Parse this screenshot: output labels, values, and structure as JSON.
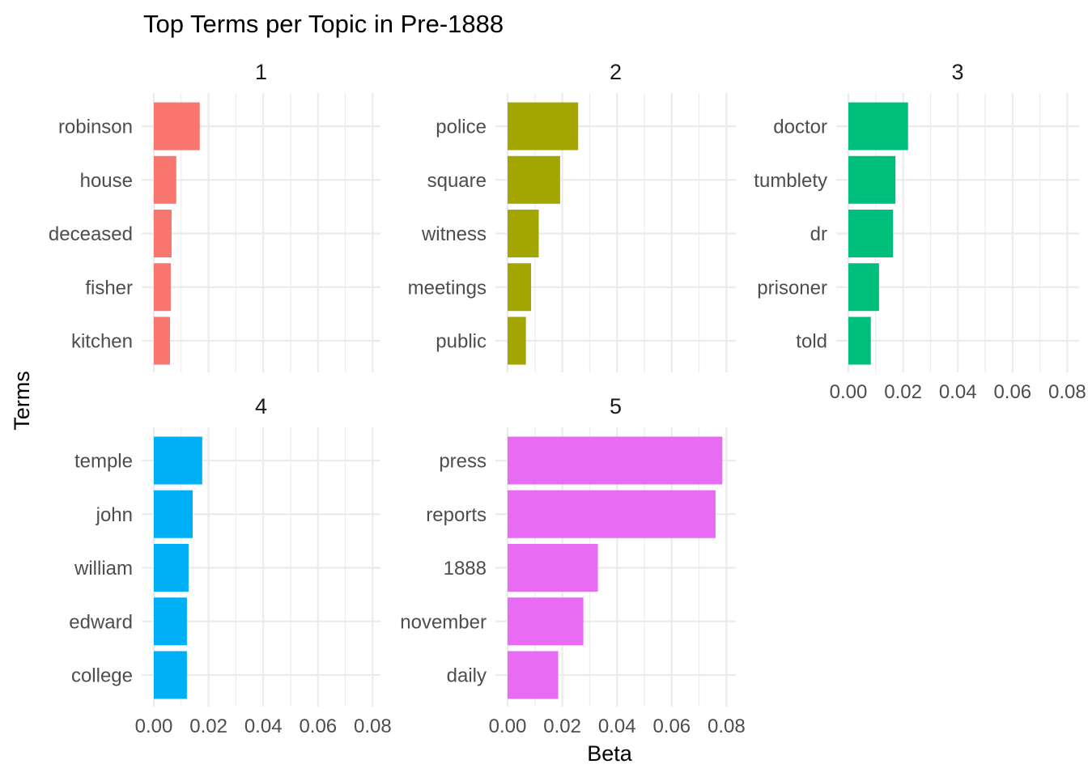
{
  "chart_data": {
    "type": "bar",
    "orientation": "horizontal",
    "title": "Top Terms per Topic in Pre-1888",
    "xlabel": "Beta",
    "ylabel": "Terms",
    "xlim": [
      0,
      0.082
    ],
    "x_ticks": [
      "0.00",
      "0.02",
      "0.04",
      "0.06",
      "0.08"
    ],
    "x_tick_values": [
      0,
      0.02,
      0.04,
      0.06,
      0.08
    ],
    "grid": true,
    "legend": "none",
    "facets": [
      {
        "label": "1",
        "color": "#F8766D",
        "terms": [
          "robinson",
          "house",
          "deceased",
          "fisher",
          "kitchen"
        ],
        "values": [
          0.0168,
          0.0082,
          0.0065,
          0.0062,
          0.0059
        ]
      },
      {
        "label": "2",
        "color": "#A3A500",
        "terms": [
          "police",
          "square",
          "witness",
          "meetings",
          "public"
        ],
        "values": [
          0.0258,
          0.0192,
          0.0114,
          0.0086,
          0.0067
        ]
      },
      {
        "label": "3",
        "color": "#00BF7D",
        "terms": [
          "doctor",
          "tumblety",
          "dr",
          "prisoner",
          "told"
        ],
        "values": [
          0.0218,
          0.0172,
          0.0163,
          0.0112,
          0.0082
        ]
      },
      {
        "label": "4",
        "color": "#00B0F6",
        "terms": [
          "temple",
          "john",
          "william",
          "edward",
          "college"
        ],
        "values": [
          0.0177,
          0.0142,
          0.0127,
          0.0121,
          0.0121
        ]
      },
      {
        "label": "5",
        "color": "#E76BF3",
        "terms": [
          "press",
          "reports",
          "1888",
          "november",
          "daily"
        ],
        "values": [
          0.0785,
          0.076,
          0.033,
          0.0277,
          0.0185
        ]
      }
    ]
  }
}
